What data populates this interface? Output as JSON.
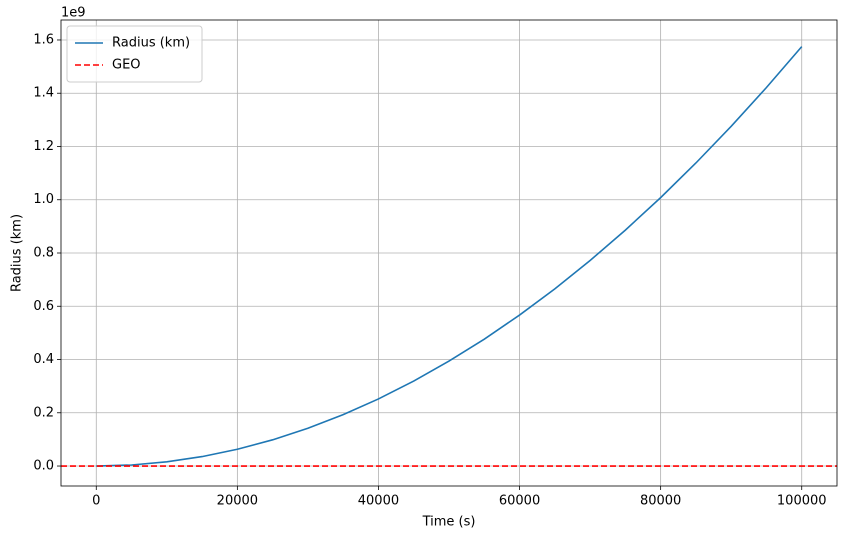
{
  "chart_data": {
    "type": "line",
    "x_label": "Time (s)",
    "y_label": "Radius (km)",
    "y_offset_label": "1e9",
    "x": [
      0,
      5000,
      10000,
      15000,
      20000,
      25000,
      30000,
      35000,
      40000,
      45000,
      50000,
      55000,
      60000,
      65000,
      70000,
      75000,
      80000,
      85000,
      90000,
      95000,
      100000
    ],
    "series": [
      {
        "name": "Radius (km)",
        "color": "#1f77b4",
        "values": [
          0,
          0.0039,
          0.0158,
          0.0354,
          0.063,
          0.0984,
          0.1418,
          0.193,
          0.252,
          0.319,
          0.394,
          0.4764,
          0.567,
          0.6654,
          0.7718,
          0.886,
          1.008,
          1.138,
          1.2758,
          1.4214,
          1.575
        ]
      },
      {
        "name": "GEO",
        "color": "#ff0000",
        "dashed": true,
        "hline": 0
      }
    ],
    "xlim": [
      -5000,
      105000
    ],
    "xticks": [
      0,
      20000,
      40000,
      60000,
      80000,
      100000
    ],
    "ylim": [
      -0.075,
      1.675
    ],
    "yticks": [
      {
        "value": 0,
        "label": "0.0"
      },
      0.2,
      0.4,
      0.6,
      0.8,
      {
        "value": 1,
        "label": "1.0"
      },
      1.2,
      1.4,
      1.6
    ],
    "grid": true,
    "legend": "upper left"
  }
}
